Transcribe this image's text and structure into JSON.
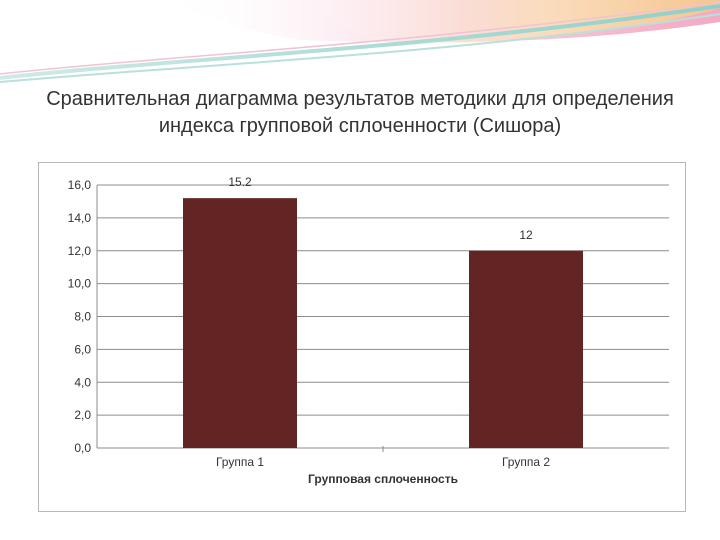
{
  "slide": {
    "title": "Сравнительная диаграмма результатов методики для определения индекса групповой сплоченности (Сишора)"
  },
  "colors": {
    "bar": "#632523",
    "grid": "#8c8c8c",
    "text": "#333333",
    "decor_pink": "#f3b3c8",
    "decor_teal": "#9fd3cf"
  },
  "chart_data": {
    "type": "bar",
    "title": "",
    "xlabel": "Групповая сплоченность",
    "ylabel": "",
    "categories": [
      "Группа 1",
      "Группа 2"
    ],
    "values": [
      15.2,
      12
    ],
    "data_labels": [
      "15.2",
      "12"
    ],
    "ylim": [
      0,
      16
    ],
    "yticks": [
      "0,0",
      "2,0",
      "4,0",
      "6,0",
      "8,0",
      "10,0",
      "12,0",
      "14,0",
      "16,0"
    ],
    "grid": true,
    "legend": "none"
  }
}
